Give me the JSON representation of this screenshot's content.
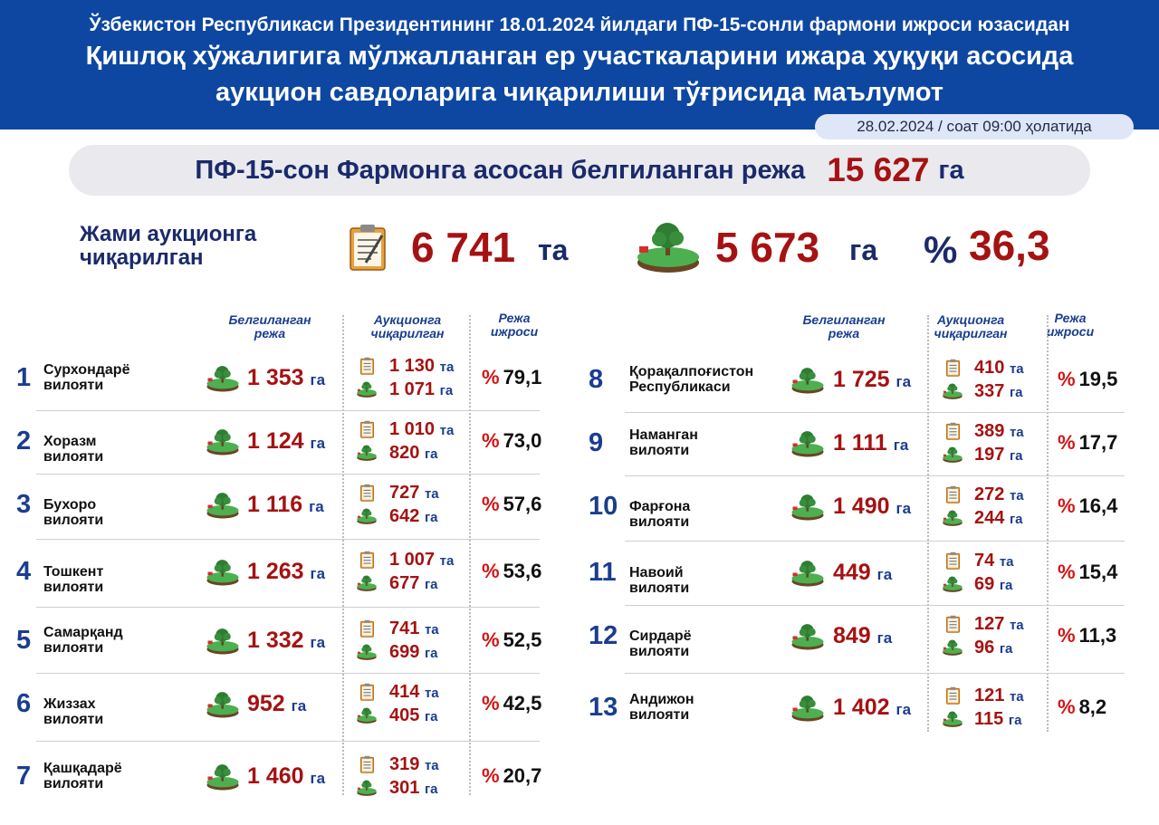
{
  "header": {
    "subtitle": "Ўзбекистон Республикаси Президентининг 18.01.2024 йилдаги ПФ-15-сонли фармони ижроси юзасидан",
    "title_line1": "Қишлоқ хўжалигига мўлжалланган ер участкаларини ижара ҳуқуқи асосида",
    "title_line2": "аукцион савдоларига чиқарилиши тўғрисида маълумот",
    "date": "28.02.2024 / соат 09:00 ҳолатида"
  },
  "plan": {
    "label": "ПФ-15-сон Фармонга асосан белгиланган режа",
    "value": "15 627",
    "unit": "га"
  },
  "totals": {
    "label_line1": "Жами аукционга",
    "label_line2": "чиқарилган",
    "lots": "6 741",
    "lots_unit": "та",
    "area": "5 673",
    "area_unit": "га",
    "pct_sign": "%",
    "pct": "36,3"
  },
  "columns": {
    "plan": [
      "Белгиланган",
      "режа"
    ],
    "auction": [
      "Аукционга",
      "чиқарилган"
    ],
    "exec": [
      "Режа",
      "ижроси"
    ]
  },
  "units": {
    "ha": "га",
    "pcs": "та",
    "pct": "%"
  },
  "icons": {
    "document": "clipboard-doc-icon",
    "land": "land-plot-icon"
  },
  "colors": {
    "header_bg": "#0d47a1",
    "accent_red": "#a51212",
    "navy": "#1a2a6a"
  },
  "regions": [
    {
      "idx": "1",
      "name": [
        "Сурхондарё",
        "вилояти"
      ],
      "plan": "1 353",
      "lots": "1 130",
      "area": "1 071",
      "pct": "79,1"
    },
    {
      "idx": "2",
      "name": [
        "Хоразм вилояти"
      ],
      "plan": "1 124",
      "lots": "1 010",
      "area": "820",
      "pct": "73,0"
    },
    {
      "idx": "3",
      "name": [
        "Бухоро вилояти"
      ],
      "plan": "1 116",
      "lots": "727",
      "area": "642",
      "pct": "57,6"
    },
    {
      "idx": "4",
      "name": [
        "Тошкент вилояти"
      ],
      "plan": "1 263",
      "lots": "1 007",
      "area": "677",
      "pct": "53,6"
    },
    {
      "idx": "5",
      "name": [
        "Самарқанд",
        "вилояти"
      ],
      "plan": "1 332",
      "lots": "741",
      "area": "699",
      "pct": "52,5"
    },
    {
      "idx": "6",
      "name": [
        "Жиззах вилояти"
      ],
      "plan": "952",
      "lots": "414",
      "area": "405",
      "pct": "42,5"
    },
    {
      "idx": "7",
      "name": [
        "Қашқадарё",
        "вилояти"
      ],
      "plan": "1 460",
      "lots": "319",
      "area": "301",
      "pct": "20,7"
    },
    {
      "idx": "8",
      "name": [
        "Қорақалпоғистон",
        "Республикаси"
      ],
      "plan": "1 725",
      "lots": "410",
      "area": "337",
      "pct": "19,5"
    },
    {
      "idx": "9",
      "name": [
        "Наманган",
        "вилояти"
      ],
      "plan": "1 111",
      "lots": "389",
      "area": "197",
      "pct": "17,7"
    },
    {
      "idx": "10",
      "name": [
        "Фарғона вилояти"
      ],
      "plan": "1 490",
      "lots": "272",
      "area": "244",
      "pct": "16,4"
    },
    {
      "idx": "11",
      "name": [
        "Навоий вилояти"
      ],
      "plan": "449",
      "lots": "74",
      "area": "69",
      "pct": "15,4"
    },
    {
      "idx": "12",
      "name": [
        "Сирдарё вилояти"
      ],
      "plan": "849",
      "lots": "127",
      "area": "96",
      "pct": "11,3"
    },
    {
      "idx": "13",
      "name": [
        "Андижон",
        "вилояти"
      ],
      "plan": "1 402",
      "lots": "121",
      "area": "115",
      "pct": "8,2"
    }
  ]
}
